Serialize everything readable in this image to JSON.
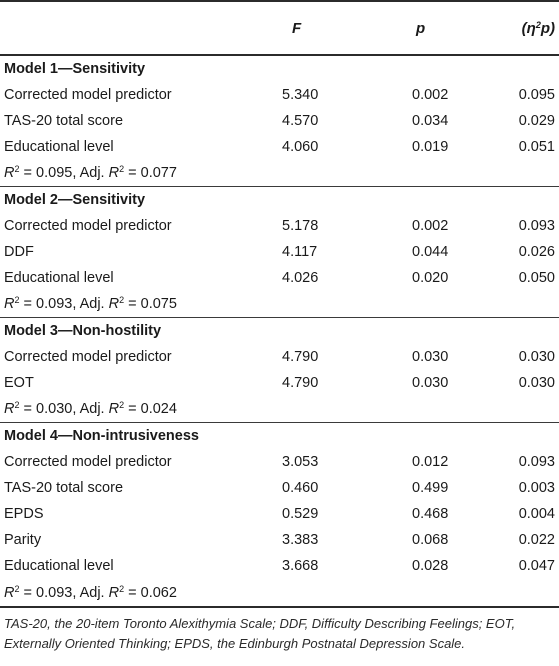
{
  "header": {
    "col0": "",
    "col1": "F",
    "col2": "p",
    "col3_prefix": "(η",
    "col3_sup": "2",
    "col3_suffix": "p)"
  },
  "models": [
    {
      "title": "Model 1—Sensitivity",
      "rows": [
        {
          "label": "Corrected model predictor",
          "F": "5.340",
          "p": "0.002",
          "eta": "0.095"
        },
        {
          "label": "TAS-20 total score",
          "F": "4.570",
          "p": "0.034",
          "eta": "0.029"
        },
        {
          "label": "Educational level",
          "F": "4.060",
          "p": "0.019",
          "eta": "0.051"
        }
      ],
      "r2": "0.095",
      "adj_r2": "0.077"
    },
    {
      "title": "Model 2—Sensitivity",
      "rows": [
        {
          "label": "Corrected model predictor",
          "F": "5.178",
          "p": "0.002",
          "eta": "0.093"
        },
        {
          "label": "DDF",
          "F": "4.117",
          "p": "0.044",
          "eta": "0.026"
        },
        {
          "label": "Educational level",
          "F": "4.026",
          "p": "0.020",
          "eta": "0.050"
        }
      ],
      "r2": "0.093",
      "adj_r2": "0.075"
    },
    {
      "title": "Model 3—Non-hostility",
      "rows": [
        {
          "label": "Corrected model predictor",
          "F": "4.790",
          "p": "0.030",
          "eta": "0.030"
        },
        {
          "label": "EOT",
          "F": "4.790",
          "p": "0.030",
          "eta": "0.030"
        }
      ],
      "r2": "0.030",
      "adj_r2": "0.024"
    },
    {
      "title": "Model 4—Non-intrusiveness",
      "rows": [
        {
          "label": "Corrected model predictor",
          "F": "3.053",
          "p": "0.012",
          "eta": "0.093"
        },
        {
          "label": "TAS-20 total score",
          "F": "0.460",
          "p": "0.499",
          "eta": "0.003"
        },
        {
          "label": "EPDS",
          "F": "0.529",
          "p": "0.468",
          "eta": "0.004"
        },
        {
          "label": "Parity",
          "F": "3.383",
          "p": "0.068",
          "eta": "0.022"
        },
        {
          "label": "Educational level",
          "F": "3.668",
          "p": "0.028",
          "eta": "0.047"
        }
      ],
      "r2": "0.093",
      "adj_r2": "0.062"
    }
  ],
  "r2_text": {
    "r": "R",
    "sup": "2",
    "eq": " = ",
    "sep": ", Adj. "
  },
  "footnote": "TAS-20, the 20-item Toronto Alexithymia Scale; DDF, Difficulty Describing Feelings; EOT, Externally Oriented Thinking; EPDS, the Edinburgh Postnatal Depression Scale."
}
